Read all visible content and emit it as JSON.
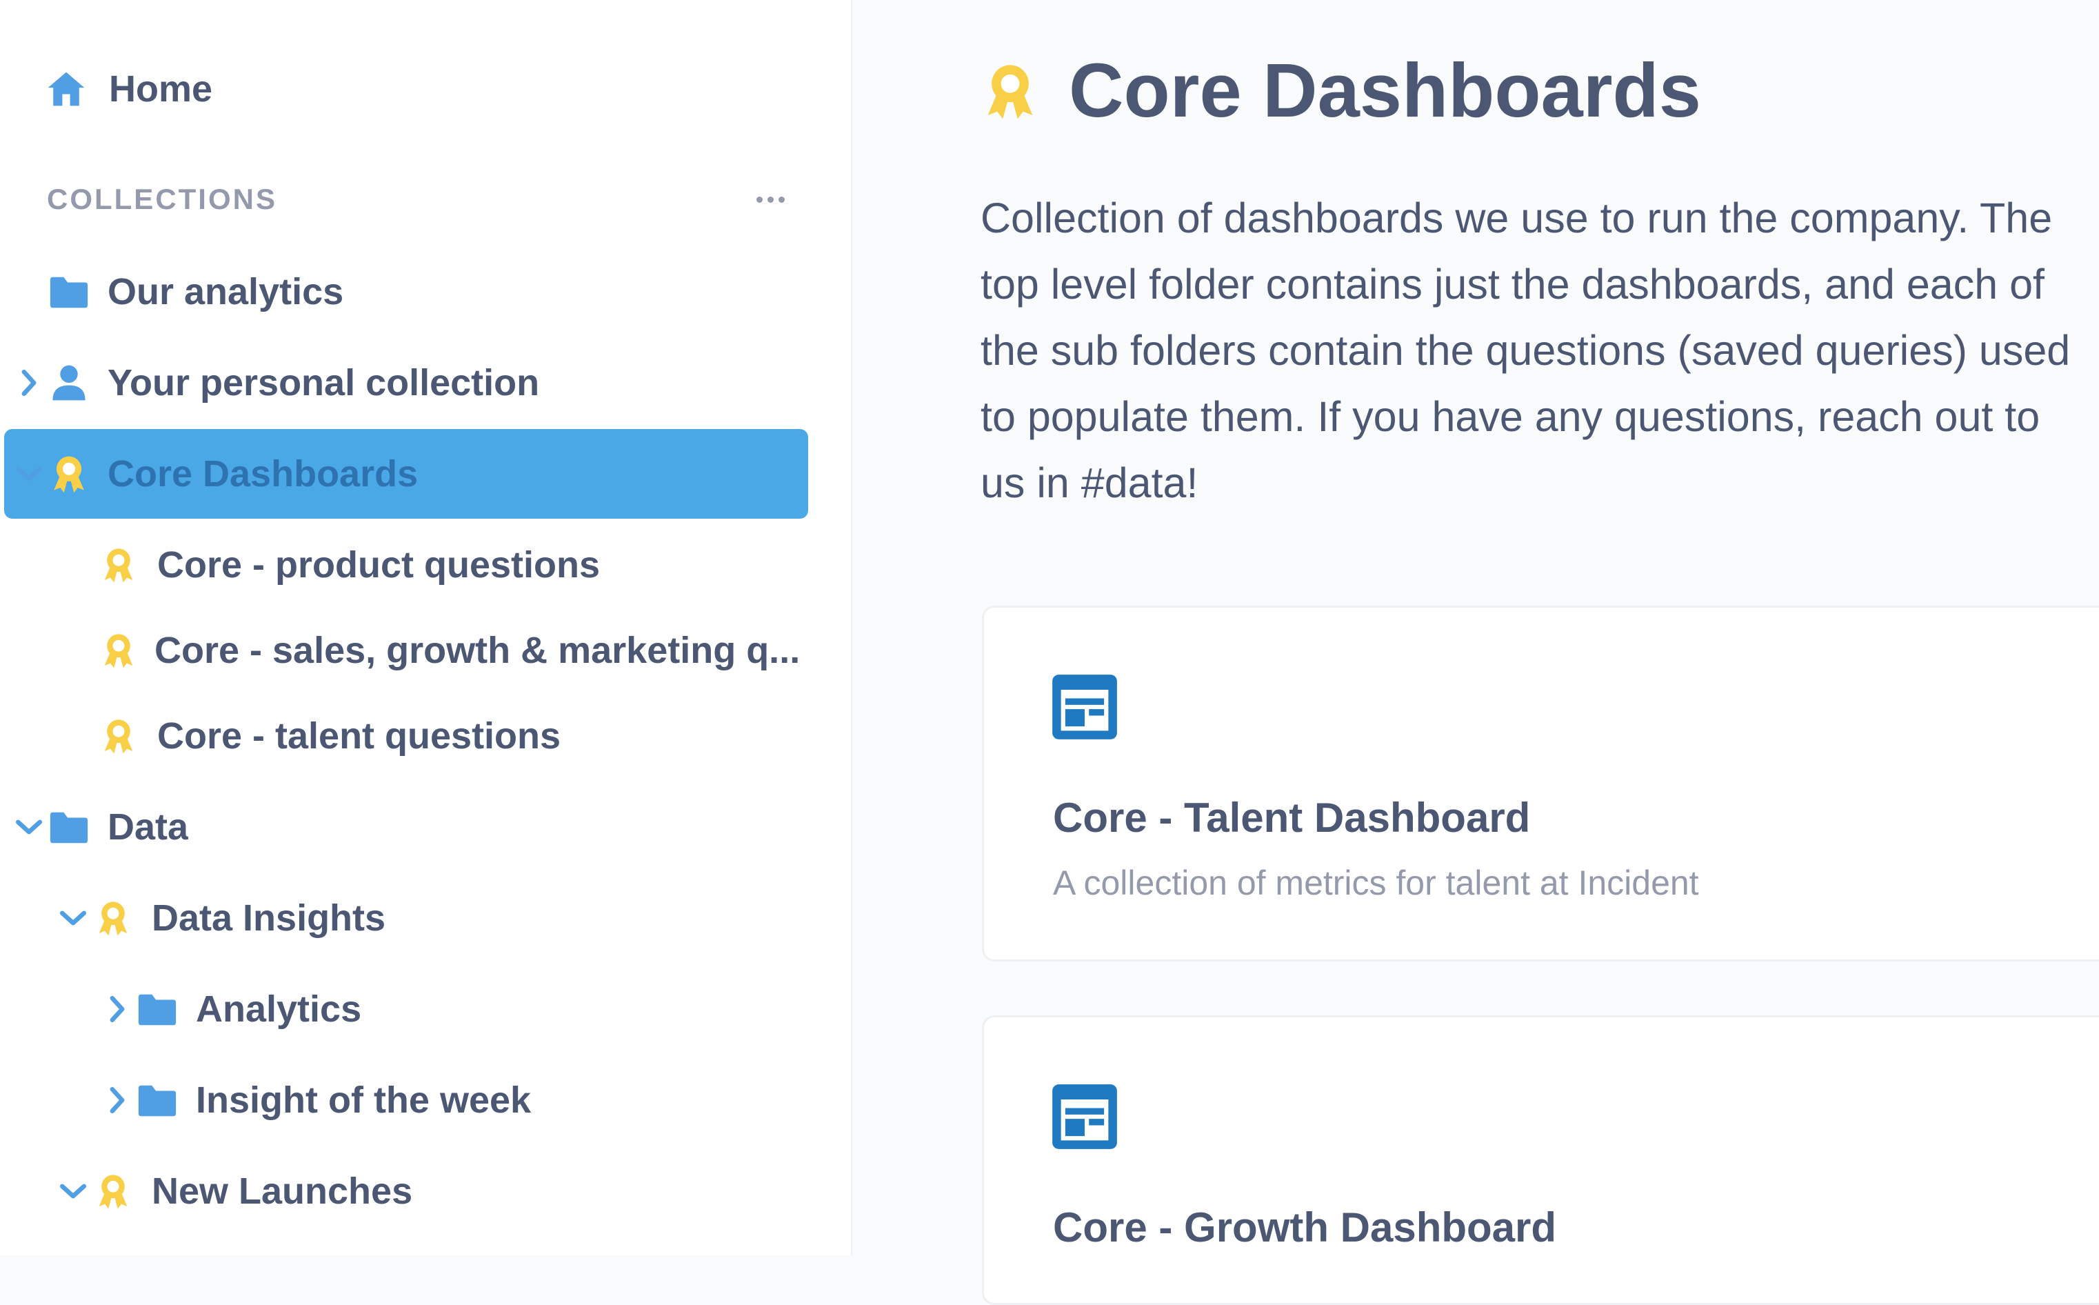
{
  "sidebar": {
    "home_label": "Home",
    "collections_header": "COLLECTIONS",
    "items": [
      {
        "label": "Our analytics"
      },
      {
        "label": "Your personal collection"
      },
      {
        "label": "Core Dashboards"
      },
      {
        "label": "Core - product questions"
      },
      {
        "label": "Core - sales, growth & marketing q..."
      },
      {
        "label": "Core - talent questions"
      },
      {
        "label": "Data"
      },
      {
        "label": "Data Insights"
      },
      {
        "label": "Analytics"
      },
      {
        "label": "Insight of the week"
      },
      {
        "label": "New Launches"
      }
    ]
  },
  "main": {
    "title": "Core Dashboards",
    "description": "Collection of dashboards we use to run the company. The top level folder contains just the dashboards, and each of the sub folders contain the questions (saved queries) used to populate them. If you have any questions, reach out to us in #data!",
    "cards": [
      {
        "title": "Core - Talent Dashboard",
        "description": "A collection of metrics for talent at Incident"
      },
      {
        "title": "Core - Growth Dashboard",
        "description": ""
      }
    ]
  },
  "colors": {
    "brand_blue": "#509ee3",
    "active_bg": "#4ba8e6",
    "official_yellow": "#f9cf48",
    "text_dark": "#4c5773",
    "text_light": "#949aab",
    "dashboard_icon_blue": "#1f7ac2"
  },
  "icons": {
    "home": "home-icon",
    "folder": "folder-icon",
    "person": "person-icon",
    "official": "official-badge-icon",
    "dashboard": "dashboard-icon",
    "chevron_right": "chevron-right-icon",
    "chevron_down": "chevron-down-icon",
    "more": "more-icon"
  }
}
